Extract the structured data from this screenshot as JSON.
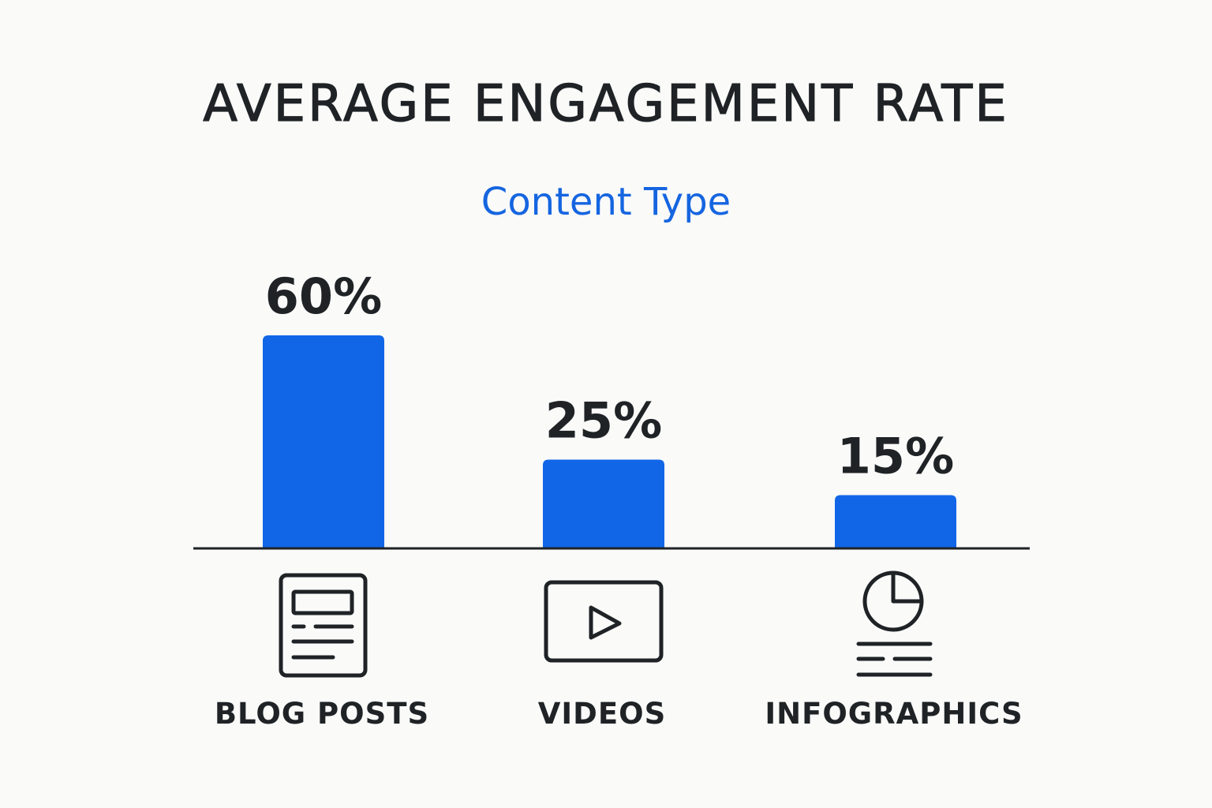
{
  "chart_data": {
    "type": "bar",
    "title": "AVERAGE ENGAGEMENT RATE",
    "subtitle": "Content Type",
    "categories": [
      "BLOG POSTS",
      "VIDEOS",
      "INFOGRAPHICS"
    ],
    "values": [
      60,
      25,
      15
    ],
    "value_labels": [
      "60%",
      "25%",
      "15%"
    ],
    "ylim": [
      0,
      60
    ],
    "grid": false,
    "legend": "none",
    "category_icons": [
      "document-icon",
      "video-play-icon",
      "pie-chart-icon"
    ]
  },
  "colors": {
    "bar": "#1166e8",
    "text": "#1f2326",
    "subtitle": "#1565e0",
    "background": "#fafaf9"
  }
}
